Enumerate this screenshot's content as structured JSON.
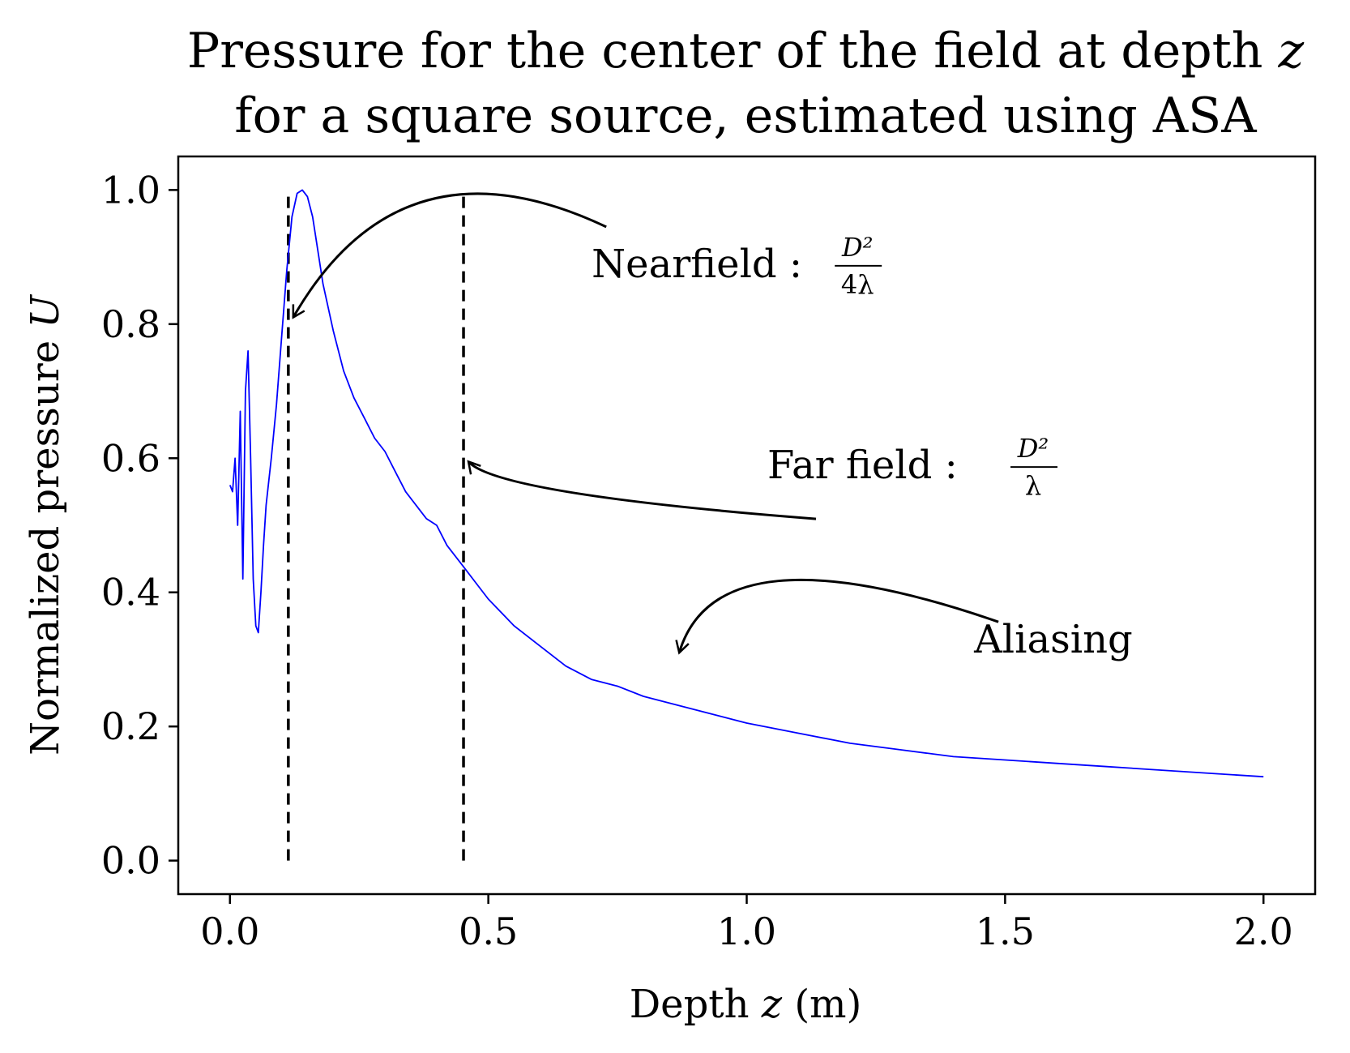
{
  "chart_data": {
    "type": "line",
    "title": "Pressure for the center of the field at depth z for a square source, estimated using ASA",
    "title_lines": [
      "Pressure for the center of the field at depth ",
      "z",
      "for a square source, estimated using ASA"
    ],
    "xlabel": "Depth z (m)",
    "xlabel_parts": [
      "Depth ",
      "z",
      " (m)"
    ],
    "ylabel": "Normalized pressure U",
    "ylabel_parts": [
      "Normalized pressure ",
      "U"
    ],
    "xlim": [
      -0.1,
      2.1
    ],
    "ylim": [
      -0.05,
      1.05
    ],
    "xticks": [
      0.0,
      0.5,
      1.0,
      1.5,
      2.0
    ],
    "xtick_labels": [
      "0.0",
      "0.5",
      "1.0",
      "1.5",
      "2.0"
    ],
    "yticks": [
      0.0,
      0.2,
      0.4,
      0.6,
      0.8,
      1.0
    ],
    "ytick_labels": [
      "0.0",
      "0.2",
      "0.4",
      "0.6",
      "0.8",
      "1.0"
    ],
    "grid": false,
    "series": [
      {
        "color": "#0000ff",
        "x": [
          0.0,
          0.005,
          0.01,
          0.015,
          0.02,
          0.025,
          0.03,
          0.035,
          0.04,
          0.045,
          0.05,
          0.055,
          0.06,
          0.065,
          0.07,
          0.08,
          0.09,
          0.1,
          0.11,
          0.12,
          0.13,
          0.14,
          0.15,
          0.16,
          0.17,
          0.18,
          0.2,
          0.22,
          0.24,
          0.26,
          0.28,
          0.3,
          0.32,
          0.34,
          0.36,
          0.38,
          0.4,
          0.42,
          0.45,
          0.48,
          0.5,
          0.55,
          0.6,
          0.65,
          0.7,
          0.75,
          0.8,
          0.85,
          0.9,
          0.95,
          1.0,
          1.1,
          1.2,
          1.3,
          1.4,
          1.5,
          1.6,
          1.7,
          1.8,
          1.9,
          2.0
        ],
        "y": [
          0.56,
          0.55,
          0.6,
          0.5,
          0.67,
          0.42,
          0.7,
          0.76,
          0.6,
          0.42,
          0.35,
          0.34,
          0.4,
          0.47,
          0.53,
          0.6,
          0.68,
          0.78,
          0.88,
          0.96,
          0.995,
          1.0,
          0.99,
          0.96,
          0.91,
          0.86,
          0.79,
          0.73,
          0.69,
          0.66,
          0.63,
          0.61,
          0.58,
          0.55,
          0.53,
          0.51,
          0.5,
          0.47,
          0.44,
          0.41,
          0.39,
          0.35,
          0.32,
          0.29,
          0.27,
          0.26,
          0.245,
          0.235,
          0.225,
          0.215,
          0.205,
          0.19,
          0.175,
          0.165,
          0.155,
          0.15,
          0.145,
          0.14,
          0.135,
          0.13,
          0.125
        ]
      }
    ],
    "vlines": [
      {
        "x": 0.113,
        "ymin": 0.0,
        "ymax": 1.0,
        "style": "dashed",
        "color": "#000000"
      },
      {
        "x": 0.452,
        "ymin": 0.0,
        "ymax": 1.0,
        "style": "dashed",
        "color": "#000000"
      }
    ],
    "annotations": [
      {
        "text": "Nearfield : ",
        "formula_num": "D²",
        "formula_den": "4λ",
        "text_x": 0.7,
        "text_y": 0.87,
        "arrow_to": [
          0.113,
          0.81
        ]
      },
      {
        "text": "Far field : ",
        "formula_num": "D²",
        "formula_den": "λ",
        "text_x": 1.04,
        "text_y": 0.57,
        "arrow_to": [
          0.452,
          0.595
        ]
      },
      {
        "text": "Aliasing",
        "text_x": 1.44,
        "text_y": 0.31,
        "arrow_to": [
          0.86,
          0.31
        ]
      }
    ]
  }
}
